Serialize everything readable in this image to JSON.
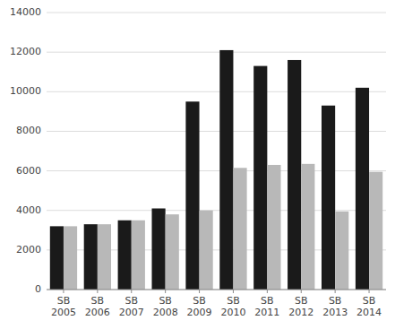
{
  "chart_data": {
    "type": "bar",
    "categories": [
      "SB\n2005",
      "SB\n2006",
      "SB\n2007",
      "SB\n2008",
      "SB\n2009",
      "SB\n2010",
      "SB\n2011",
      "SB\n2012",
      "SB\n2013",
      "SB\n2014"
    ],
    "series": [
      {
        "color": "#1a1a1a",
        "values": [
          3200,
          3300,
          3500,
          4100,
          9500,
          12100,
          11300,
          11600,
          9300,
          10200
        ]
      },
      {
        "color": "#b8b8b8",
        "values": [
          3200,
          3300,
          3500,
          3800,
          4000,
          6150,
          6300,
          6350,
          3950,
          5950
        ]
      }
    ],
    "ylim": [
      0,
      14000
    ],
    "yticks": [
      0,
      2000,
      4000,
      6000,
      8000,
      10000,
      12000,
      14000
    ],
    "grid": true
  }
}
